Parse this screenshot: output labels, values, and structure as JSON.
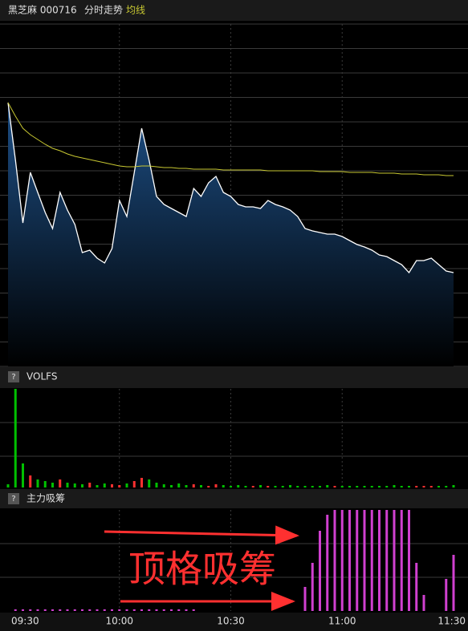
{
  "chart_data": [
    {
      "type": "area",
      "title": "黑芝麻 000716",
      "subtitle": "分时走势",
      "categories": [
        "09:30",
        null,
        null,
        null,
        null,
        null,
        null,
        null,
        null,
        null,
        null,
        null,
        null,
        null,
        null,
        "10:00",
        null,
        null,
        null,
        null,
        null,
        null,
        null,
        null,
        null,
        null,
        null,
        null,
        null,
        null,
        "10:30",
        null,
        null,
        null,
        null,
        null,
        null,
        null,
        null,
        null,
        null,
        null,
        null,
        null,
        null,
        "11:00",
        null,
        null,
        null,
        null,
        null,
        null,
        null,
        null,
        null,
        null,
        null,
        null,
        null,
        null,
        "11:30"
      ],
      "series": [
        {
          "color": "#ffffff",
          "fill": "#1d4f86",
          "values": [
            329,
            257,
            179,
            242,
            217,
            192,
            172,
            217,
            195,
            177,
            142,
            145,
            135,
            129,
            147,
            207,
            187,
            242,
            297,
            257,
            212,
            202,
            197,
            192,
            187,
            222,
            212,
            229,
            237,
            217,
            212,
            202,
            199,
            199,
            197,
            207,
            202,
            199,
            195,
            187,
            172,
            169,
            167,
            165,
            165,
            162,
            157,
            152,
            149,
            145,
            139,
            137,
            132,
            127,
            117,
            132,
            132,
            135,
            127,
            119,
            117
          ]
        },
        {
          "name": "均线",
          "color": "#c8c832",
          "values": [
            329,
            312,
            297,
            289,
            283,
            277,
            272,
            269,
            265,
            262,
            260,
            258,
            256,
            254,
            252,
            250,
            249,
            249,
            250,
            250,
            249,
            248,
            248,
            247,
            247,
            246,
            246,
            246,
            246,
            245,
            245,
            245,
            245,
            245,
            245,
            244,
            244,
            244,
            244,
            244,
            244,
            244,
            243,
            243,
            243,
            243,
            242,
            242,
            242,
            242,
            241,
            241,
            241,
            240,
            240,
            240,
            239,
            239,
            239,
            238,
            238
          ]
        }
      ],
      "ylim": [
        0,
        427
      ],
      "grid": true
    },
    {
      "type": "bar",
      "title": "VOLFS",
      "badge": "?",
      "up_color": "#ff3030",
      "down_color": "#00c000",
      "values": [
        4,
        123,
        30,
        15,
        10,
        8,
        6,
        10,
        6,
        5,
        4,
        6,
        3,
        5,
        4,
        3,
        5,
        8,
        12,
        10,
        6,
        4,
        3,
        5,
        3,
        4,
        3,
        2,
        4,
        3,
        2,
        3,
        2,
        2,
        3,
        2,
        2,
        2,
        3,
        2,
        2,
        2,
        2,
        3,
        2,
        2,
        2,
        2,
        2,
        2,
        2,
        2,
        3,
        2,
        2,
        2,
        2,
        2,
        2,
        2,
        3
      ],
      "ylim": [
        0,
        123
      ]
    },
    {
      "type": "bar",
      "title": "主力吸筹",
      "badge": "?",
      "color": "#d040d0",
      "annotation": "顶格吸筹",
      "values": [
        0,
        2,
        2,
        2,
        2,
        2,
        2,
        2,
        2,
        2,
        2,
        2,
        2,
        2,
        2,
        2,
        2,
        2,
        2,
        2,
        2,
        2,
        2,
        2,
        2,
        2,
        0,
        0,
        0,
        0,
        0,
        0,
        0,
        0,
        0,
        0,
        0,
        0,
        0,
        0,
        30,
        60,
        100,
        120,
        126,
        126,
        126,
        126,
        126,
        126,
        126,
        126,
        126,
        126,
        126,
        60,
        20,
        0,
        0,
        40,
        70
      ],
      "ylim": [
        0,
        126
      ]
    }
  ]
}
